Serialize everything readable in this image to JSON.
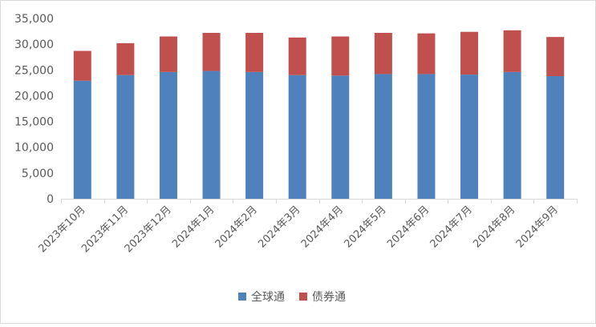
{
  "chart_data": {
    "type": "bar",
    "stacked": true,
    "categories": [
      "2023年10月",
      "2023年11月",
      "2023年12月",
      "2024年1月",
      "2024年2月",
      "2024年3月",
      "2024年4月",
      "2024年5月",
      "2024年6月",
      "2024年7月",
      "2024年8月",
      "2024年9月"
    ],
    "series": [
      {
        "name": "全球通",
        "color": "#4F81BD",
        "values": [
          22900,
          24000,
          24600,
          24800,
          24600,
          24000,
          23900,
          24200,
          24200,
          24100,
          24600,
          23800
        ]
      },
      {
        "name": "债券通",
        "color": "#C0504D",
        "values": [
          5800,
          6200,
          6900,
          7400,
          7600,
          7300,
          7600,
          8000,
          7900,
          8300,
          8100,
          7600
        ]
      }
    ],
    "ylim": [
      0,
      35000
    ],
    "y_ticks": [
      "0",
      "5,000",
      "10,000",
      "15,000",
      "20,000",
      "25,000",
      "30,000",
      "35,000"
    ],
    "grid": false,
    "legend": "bottom",
    "title": "",
    "xlabel": "",
    "ylabel": ""
  }
}
